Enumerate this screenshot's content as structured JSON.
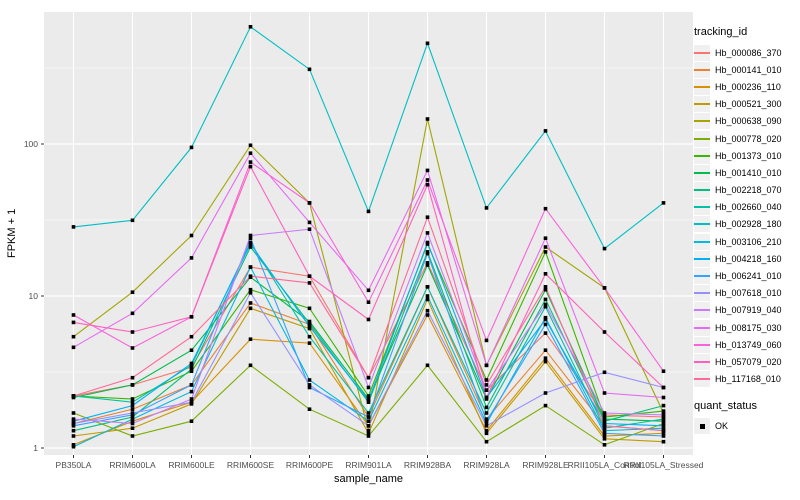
{
  "figure": {
    "y_axis": {
      "title": "FPKM + 1",
      "tick_labels": [
        "1",
        "10",
        "100"
      ]
    },
    "x_axis": {
      "title": "sample_name"
    },
    "legend": {
      "tracking_title": "tracking_id",
      "quant_title": "quant_status",
      "quant_label": "OK",
      "quant_marker": "black-square"
    },
    "colors": {
      "panel_bg": "#EBEBEB",
      "grid": "#FFFFFF",
      "axis_text": "#4D4D4D",
      "tick_mark": "#333333",
      "point": "#000000",
      "legend_key_bg": "#F0F0F0"
    }
  },
  "chart_data": {
    "type": "line",
    "x_type": "categorical",
    "title": "",
    "xlabel": "sample_name",
    "ylabel": "FPKM + 1",
    "y_scale": "log10",
    "y_ticks": [
      1,
      10,
      100
    ],
    "y_minor_ticks": [
      3.1623,
      31.623,
      316.23
    ],
    "ylim": [
      0.9,
      740
    ],
    "grid": true,
    "legend_position": "right",
    "point_marker": "filled-square-black",
    "quant_status": {
      "title": "quant_status",
      "items": [
        "OK"
      ]
    },
    "categories": [
      "PB350LA",
      "RRIM600LA",
      "RRIM600LE",
      "RRIM600SE",
      "RRIM600PE",
      "RRIM901LA",
      "RRIM928BA",
      "RRIM928LA",
      "RRIM928LE",
      "RRII105LA_Control",
      "RRII105LA_Stressed"
    ],
    "series": [
      {
        "name": "Hb_000086_370",
        "color": "#F8766D",
        "values": [
          2.2,
          2.6,
          3.4,
          15.5,
          13.5,
          2.9,
          16.5,
          2.4,
          5.7,
          1.65,
          1.6
        ]
      },
      {
        "name": "Hb_000141_010",
        "color": "#EA8331",
        "values": [
          1.45,
          1.8,
          2.6,
          9.0,
          6.5,
          1.6,
          11.5,
          1.55,
          4.4,
          1.4,
          1.3
        ]
      },
      {
        "name": "Hb_000236_110",
        "color": "#D89000",
        "values": [
          1.05,
          1.5,
          2.0,
          5.2,
          4.9,
          1.4,
          7.5,
          1.3,
          3.9,
          1.2,
          1.25
        ]
      },
      {
        "name": "Hb_000521_300",
        "color": "#C09B00",
        "values": [
          1.2,
          1.35,
          1.95,
          8.3,
          6.1,
          1.25,
          9.5,
          1.25,
          3.7,
          1.15,
          1.1
        ]
      },
      {
        "name": "Hb_000638_090",
        "color": "#A3A500",
        "values": [
          5.4,
          10.6,
          25,
          98,
          41,
          1.3,
          146,
          3.5,
          21,
          11.3,
          1.7
        ]
      },
      {
        "name": "Hb_000778_020",
        "color": "#7CAE00",
        "values": [
          1.7,
          1.2,
          1.5,
          3.5,
          1.8,
          1.2,
          3.5,
          1.1,
          1.9,
          1.05,
          1.45
        ]
      },
      {
        "name": "Hb_001373_010",
        "color": "#39B600",
        "values": [
          2.2,
          2.1,
          3.2,
          11,
          8.3,
          2.2,
          22,
          2.8,
          19.5,
          1.6,
          1.75
        ]
      },
      {
        "name": "Hb_001410_010",
        "color": "#00BB4E",
        "values": [
          2.15,
          2.6,
          4.4,
          13.3,
          6.8,
          2.1,
          16,
          2.1,
          11,
          1.55,
          1.5
        ]
      },
      {
        "name": "Hb_002218_070",
        "color": "#00BF7D",
        "values": [
          1.3,
          1.6,
          3.3,
          21,
          6.6,
          2.0,
          19.5,
          1.85,
          9.5,
          1.5,
          1.9
        ]
      },
      {
        "name": "Hb_002660_040",
        "color": "#00C1A3",
        "values": [
          2.2,
          2.0,
          3.5,
          22.5,
          5.4,
          1.7,
          11.5,
          1.7,
          8.5,
          1.35,
          1.55
        ]
      },
      {
        "name": "Hb_002928_180",
        "color": "#00BFC4",
        "values": [
          28.5,
          31.5,
          95,
          590,
          310,
          36,
          460,
          38,
          122,
          20.5,
          41
        ]
      },
      {
        "name": "Hb_003106_210",
        "color": "#00BAE0",
        "values": [
          1.02,
          1.55,
          2.35,
          15.5,
          2.8,
          1.5,
          10,
          1.45,
          7.2,
          1.3,
          1.35
        ]
      },
      {
        "name": "Hb_004218_160",
        "color": "#00B0F6",
        "values": [
          1.5,
          1.9,
          3.6,
          22,
          6.3,
          2.05,
          22.5,
          2.15,
          7.0,
          1.45,
          1.4
        ]
      },
      {
        "name": "Hb_006241_010",
        "color": "#35A2FF",
        "values": [
          1.4,
          1.65,
          2.6,
          24,
          2.5,
          1.6,
          19,
          1.5,
          6.5,
          1.25,
          1.2
        ]
      },
      {
        "name": "Hb_007618_010",
        "color": "#9590FF",
        "values": [
          1.45,
          1.7,
          2.0,
          10.5,
          2.6,
          1.4,
          8.0,
          1.4,
          2.3,
          3.15,
          2.5
        ]
      },
      {
        "name": "Hb_007919_040",
        "color": "#C77CFF",
        "values": [
          1.55,
          1.45,
          2.1,
          25,
          27.5,
          2.5,
          26,
          2.4,
          8.8,
          1.7,
          1.65
        ]
      },
      {
        "name": "Hb_008175_030",
        "color": "#E76BF3",
        "values": [
          4.6,
          7.7,
          17.8,
          87,
          30.5,
          10.9,
          67,
          3.5,
          24,
          2.3,
          2.15
        ]
      },
      {
        "name": "Hb_013749_060",
        "color": "#FA62DB",
        "values": [
          7.5,
          4.55,
          7.3,
          76,
          41,
          9.1,
          58,
          5.1,
          37.5,
          11.3,
          3.2
        ]
      },
      {
        "name": "Hb_057079_020",
        "color": "#FF62BC",
        "values": [
          6.7,
          5.8,
          7.3,
          71,
          13.5,
          7.0,
          54,
          2.15,
          14,
          5.8,
          2.5
        ]
      },
      {
        "name": "Hb_117168_010",
        "color": "#FF6A98",
        "values": [
          2.2,
          2.9,
          5.4,
          13.5,
          12.2,
          2.9,
          33,
          2.6,
          11.5,
          1.4,
          1.3
        ]
      }
    ]
  }
}
